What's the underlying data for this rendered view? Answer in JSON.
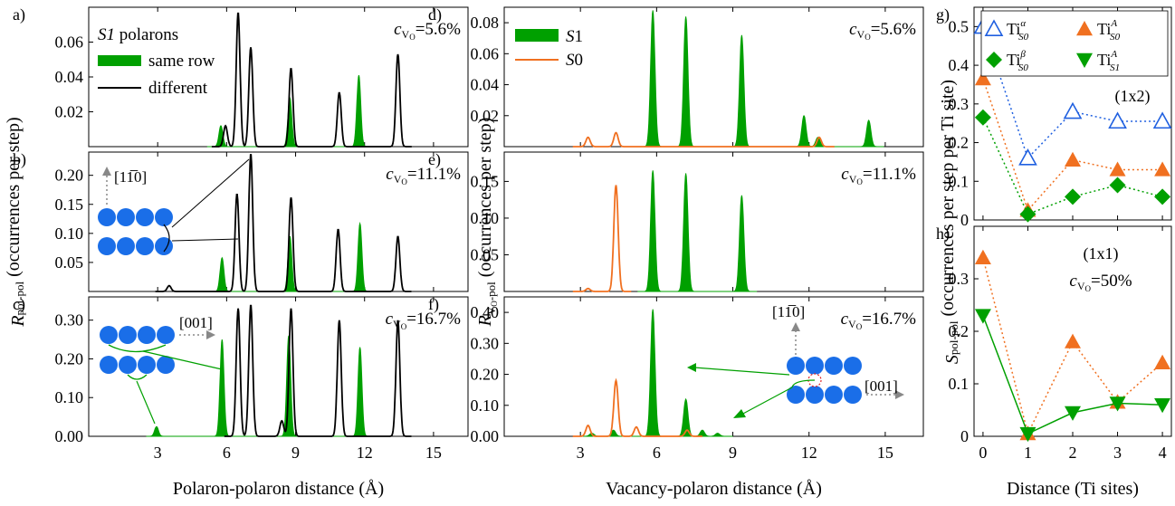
{
  "chart_data": [
    {
      "type": "area",
      "panel": "a)",
      "ylim": [
        0,
        0.08
      ],
      "yticks": [
        "0.02",
        "0.04",
        "0.06"
      ],
      "ytick_values": [
        0.02,
        0.04,
        0.06
      ],
      "xlim": [
        0,
        16.5
      ],
      "concentration": "5.6%",
      "legend": {
        "title": "S1 polarons",
        "items": [
          "same row",
          "different"
        ]
      },
      "series": [
        {
          "name": "same row",
          "color": "#00a000",
          "fill": true,
          "peaks": [
            [
              5.75,
              0.012
            ],
            [
              8.75,
              0.028
            ],
            [
              11.75,
              0.041
            ]
          ]
        },
        {
          "name": "different",
          "color": "#000000",
          "fill": false,
          "peaks": [
            [
              5.95,
              0.012
            ],
            [
              6.5,
              0.077
            ],
            [
              7.05,
              0.057
            ],
            [
              8.8,
              0.045
            ],
            [
              10.9,
              0.031
            ],
            [
              13.45,
              0.053
            ]
          ]
        }
      ]
    },
    {
      "type": "area",
      "panel": "b)",
      "ylim": [
        0,
        0.24
      ],
      "yticks": [
        "0.05",
        "0.10",
        "0.15",
        "0.20"
      ],
      "ytick_values": [
        0.05,
        0.1,
        0.15,
        0.2
      ],
      "xlim": [
        0,
        16.5
      ],
      "concentration": "11.1%",
      "direction_label": "[11̅0]",
      "series": [
        {
          "name": "same row",
          "color": "#00a000",
          "fill": true,
          "peaks": [
            [
              5.8,
              0.058
            ],
            [
              8.75,
              0.095
            ],
            [
              11.8,
              0.117
            ]
          ]
        },
        {
          "name": "different",
          "color": "#000000",
          "fill": false,
          "peaks": [
            [
              3.5,
              0.01
            ],
            [
              6.45,
              0.168
            ],
            [
              7.05,
              0.237
            ],
            [
              8.8,
              0.162
            ],
            [
              10.85,
              0.107
            ],
            [
              13.45,
              0.095
            ]
          ]
        }
      ]
    },
    {
      "type": "area",
      "panel": "c)",
      "ylim": [
        0,
        0.36
      ],
      "yticks": [
        "0.00",
        "0.10",
        "0.20",
        "0.30"
      ],
      "ytick_values": [
        0,
        0.1,
        0.2,
        0.3
      ],
      "xlim": [
        0,
        16.5
      ],
      "xticks": [
        "3",
        "6",
        "9",
        "12",
        "15"
      ],
      "xtick_values": [
        3,
        6,
        9,
        12,
        15
      ],
      "xlabel": "Polaron-polaron distance (Å)",
      "concentration": "16.7%",
      "direction_label": "[001]",
      "series": [
        {
          "name": "same row",
          "color": "#00a000",
          "fill": true,
          "peaks": [
            [
              2.95,
              0.025
            ],
            [
              5.8,
              0.25
            ],
            [
              8.7,
              0.26
            ],
            [
              11.8,
              0.23
            ]
          ]
        },
        {
          "name": "different",
          "color": "#000000",
          "fill": false,
          "peaks": [
            [
              6.5,
              0.33
            ],
            [
              7.05,
              0.34
            ],
            [
              8.4,
              0.04
            ],
            [
              8.8,
              0.33
            ],
            [
              10.9,
              0.3
            ],
            [
              13.45,
              0.3
            ]
          ]
        }
      ]
    },
    {
      "type": "area",
      "panel": "d)",
      "ylim": [
        0,
        0.09
      ],
      "yticks": [
        "0.02",
        "0.04",
        "0.06",
        "0.08"
      ],
      "ytick_values": [
        0.02,
        0.04,
        0.06,
        0.08
      ],
      "xlim": [
        0,
        16.5
      ],
      "concentration": "5.6%",
      "legend": {
        "items": [
          "S1",
          "S0"
        ]
      },
      "series": [
        {
          "name": "S1",
          "color": "#00a000",
          "fill": true,
          "peaks": [
            [
              5.85,
              0.088
            ],
            [
              7.15,
              0.084
            ],
            [
              9.35,
              0.072
            ],
            [
              11.8,
              0.02
            ],
            [
              12.35,
              0.006
            ],
            [
              14.35,
              0.017
            ]
          ]
        },
        {
          "name": "S0",
          "color": "#f07020",
          "fill": false,
          "peaks": [
            [
              3.3,
              0.006
            ],
            [
              4.4,
              0.009
            ],
            [
              12.4,
              0.006
            ]
          ]
        }
      ]
    },
    {
      "type": "area",
      "panel": "e)",
      "ylim": [
        0,
        0.19
      ],
      "yticks": [
        "0.05",
        "0.10",
        "0.15"
      ],
      "ytick_values": [
        0.05,
        0.1,
        0.15
      ],
      "xlim": [
        0,
        16.5
      ],
      "concentration": "11.1%",
      "series": [
        {
          "name": "S1",
          "color": "#00a000",
          "fill": true,
          "peaks": [
            [
              5.85,
              0.165
            ],
            [
              7.15,
              0.161
            ],
            [
              9.35,
              0.131
            ]
          ]
        },
        {
          "name": "S0",
          "color": "#f07020",
          "fill": false,
          "peaks": [
            [
              3.3,
              0.004
            ],
            [
              4.4,
              0.145
            ]
          ]
        }
      ]
    },
    {
      "type": "area",
      "panel": "f)",
      "ylim": [
        0,
        0.45
      ],
      "yticks": [
        "0.00",
        "0.10",
        "0.20",
        "0.30",
        "0.40"
      ],
      "ytick_values": [
        0,
        0.1,
        0.2,
        0.3,
        0.4
      ],
      "xlim": [
        0,
        16.5
      ],
      "xticks": [
        "3",
        "6",
        "9",
        "12",
        "15"
      ],
      "xtick_values": [
        3,
        6,
        9,
        12,
        15
      ],
      "xlabel": "Vacancy-polaron distance (Å)",
      "concentration": "16.7%",
      "direction_labels": [
        "[11̅0]",
        "[001]"
      ],
      "series": [
        {
          "name": "S1",
          "color": "#00a000",
          "fill": true,
          "peaks": [
            [
              3.45,
              0.01
            ],
            [
              4.3,
              0.02
            ],
            [
              5.85,
              0.41
            ],
            [
              7.15,
              0.12
            ],
            [
              7.8,
              0.02
            ],
            [
              8.4,
              0.01
            ]
          ]
        },
        {
          "name": "S0",
          "color": "#f07020",
          "fill": false,
          "peaks": [
            [
              3.3,
              0.035
            ],
            [
              4.4,
              0.18
            ],
            [
              5.2,
              0.03
            ],
            [
              7.2,
              0.02
            ]
          ]
        }
      ]
    },
    {
      "type": "scatter",
      "panel": "g)",
      "xlim": [
        -0.2,
        4.2
      ],
      "ylim": [
        0,
        0.55
      ],
      "yticks": [
        "0",
        "0.1",
        "0.2",
        "0.3",
        "0.4",
        "0.5"
      ],
      "ytick_values": [
        0,
        0.1,
        0.2,
        0.3,
        0.4,
        0.5
      ],
      "annotation": "(1x2)",
      "series": [
        {
          "name": "Ti_S0^α",
          "color": "#2060e0",
          "marker": "triangle-up-open",
          "x": [
            0,
            1,
            2,
            3,
            4
          ],
          "y": [
            0.5,
            0.16,
            0.28,
            0.255,
            0.255
          ]
        },
        {
          "name": "Ti_S0^A",
          "color": "#f07020",
          "marker": "triangle-up",
          "x": [
            0,
            1,
            2,
            3,
            4
          ],
          "y": [
            0.365,
            0.025,
            0.155,
            0.13,
            0.13
          ]
        },
        {
          "name": "Ti_S0^β",
          "color": "#00a000",
          "marker": "diamond",
          "x": [
            0,
            1,
            2,
            3,
            4
          ],
          "y": [
            0.265,
            0.015,
            0.06,
            0.09,
            0.06
          ]
        }
      ],
      "legend": [
        "Ti_S0^α",
        "Ti_S0^A",
        "Ti_S0^β",
        "Ti_S1^A"
      ]
    },
    {
      "type": "scatter",
      "panel": "h)",
      "xlim": [
        -0.2,
        4.2
      ],
      "ylim": [
        0,
        0.4
      ],
      "yticks": [
        "0",
        "0.1",
        "0.2",
        "0.3"
      ],
      "ytick_values": [
        0,
        0.1,
        0.2,
        0.3
      ],
      "xticks": [
        "0",
        "1",
        "2",
        "3",
        "4"
      ],
      "xtick_values": [
        0,
        1,
        2,
        3,
        4
      ],
      "xlabel": "Distance (Ti sites)",
      "annotation": "(1x1)",
      "concentration": "50%",
      "series": [
        {
          "name": "Ti_S0^A",
          "color": "#f07020",
          "marker": "triangle-up",
          "x": [
            0,
            1,
            2,
            3,
            4
          ],
          "y": [
            0.34,
            0.005,
            0.18,
            0.065,
            0.14
          ]
        },
        {
          "name": "Ti_S1^A",
          "color": "#00a000",
          "marker": "triangle-down",
          "x": [
            0,
            1,
            2,
            3,
            4
          ],
          "y": [
            0.23,
            0.005,
            0.045,
            0.063,
            0.06
          ]
        }
      ]
    }
  ],
  "ylabels": {
    "left": "pol-pol (occurrences per step)",
    "left_symbol": "R",
    "middle": "pol (occurrences per step)",
    "middle_symbol": "R",
    "middle_sub": "V",
    "right": "pol-pol (occurrences per step per Ti site)",
    "right_symbol": "S"
  },
  "colors": {
    "green": "#00a000",
    "orange": "#f07020",
    "blue": "#2060e0",
    "dot": "#1a6ee8"
  }
}
